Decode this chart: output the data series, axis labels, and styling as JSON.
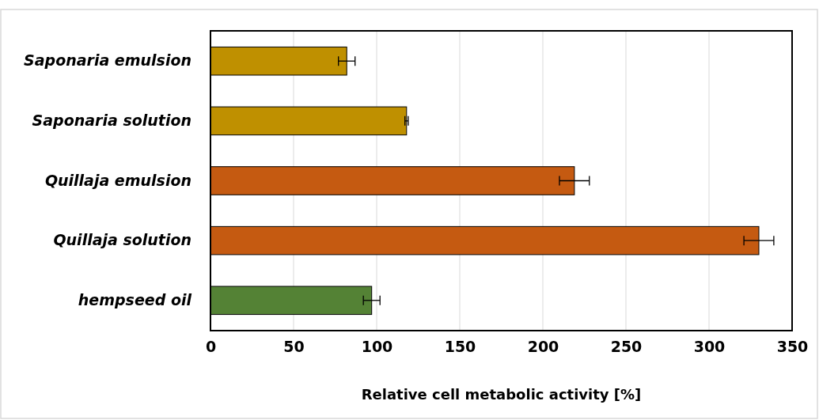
{
  "chart_data": {
    "type": "bar",
    "orientation": "horizontal",
    "xlabel": "Relative cell metabolic activity [%]",
    "categories": [
      "Saponaria emulsion",
      "Saponaria solution",
      "Quillaja emulsion",
      "Quillaja solution",
      "hempseed oil"
    ],
    "values": [
      82,
      118,
      219,
      330,
      97
    ],
    "errors": [
      5,
      1,
      9,
      9,
      5
    ],
    "colors": [
      "#bf9000",
      "#bf9000",
      "#c55a11",
      "#c55a11",
      "#548235"
    ],
    "xlim": [
      0,
      350
    ],
    "xticks": [
      0,
      50,
      100,
      150,
      200,
      250,
      300,
      350
    ],
    "grid": "x"
  }
}
